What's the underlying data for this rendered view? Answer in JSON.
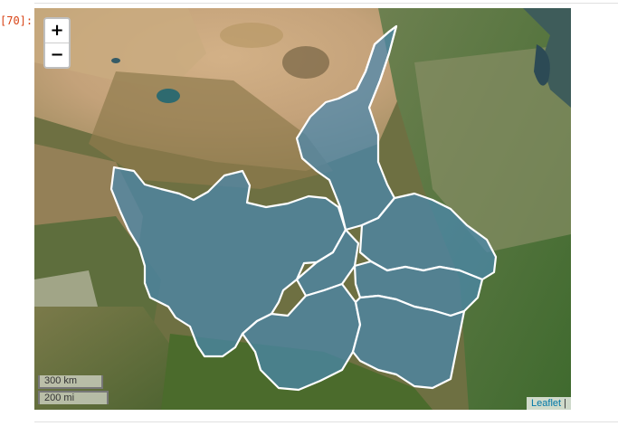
{
  "cell": {
    "prompt": "[70]:"
  },
  "map": {
    "zoom_in_label": "+",
    "zoom_out_label": "−",
    "scale_metric": "300 km",
    "scale_imperial": "200 mi",
    "attribution_link": "Leaflet",
    "attribution_sep": " |",
    "region_fill": "#4a88b0",
    "region_stroke": "#ffffff",
    "basemap": "satellite-imagery"
  }
}
